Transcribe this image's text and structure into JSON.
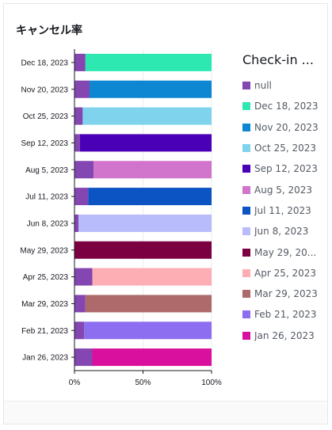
{
  "card": {
    "title": "キャンセル率"
  },
  "legend": {
    "title": "Check-in ..."
  },
  "chart_data": {
    "type": "bar",
    "orientation": "horizontal",
    "stacked": "percent",
    "categories": [
      "Dec 18, 2023",
      "Nov 20, 2023",
      "Oct 25, 2023",
      "Sep 12, 2023",
      "Aug 5, 2023",
      "Jul 11, 2023",
      "Jun 8, 2023",
      "May 29, 2023",
      "Apr 25, 2023",
      "Mar 29, 2023",
      "Feb 21, 2023",
      "Jan 26, 2023"
    ],
    "null_share_percent": [
      8,
      11,
      6,
      4,
      14,
      10,
      3,
      0,
      13,
      8,
      7,
      13
    ],
    "series": [
      {
        "name": "null",
        "color": "#8446b0"
      },
      {
        "name": "Dec 18, 2023",
        "color": "#2ee8b2"
      },
      {
        "name": "Nov 20, 2023",
        "color": "#0d87d1"
      },
      {
        "name": "Oct 25, 2023",
        "color": "#7fd3ed"
      },
      {
        "name": "Sep 12, 2023",
        "color": "#4a00b7"
      },
      {
        "name": "Aug 5, 2023",
        "color": "#d174cc"
      },
      {
        "name": "Jul 11, 2023",
        "color": "#0c54c3"
      },
      {
        "name": "Jun 8, 2023",
        "color": "#b8bcfb"
      },
      {
        "name": "May 29, 2023",
        "color": "#7a0042"
      },
      {
        "name": "Apr 25, 2023",
        "color": "#fdadb4"
      },
      {
        "name": "Mar 29, 2023",
        "color": "#ae6a6a"
      },
      {
        "name": "Feb 21, 2023",
        "color": "#8d6ef0"
      },
      {
        "name": "Jan 26, 2023",
        "color": "#d90f9e"
      }
    ],
    "x_ticks": [
      "0%",
      "50%",
      "100%"
    ],
    "xlim": [
      0,
      100
    ],
    "legend_position": "right",
    "grid": true
  }
}
